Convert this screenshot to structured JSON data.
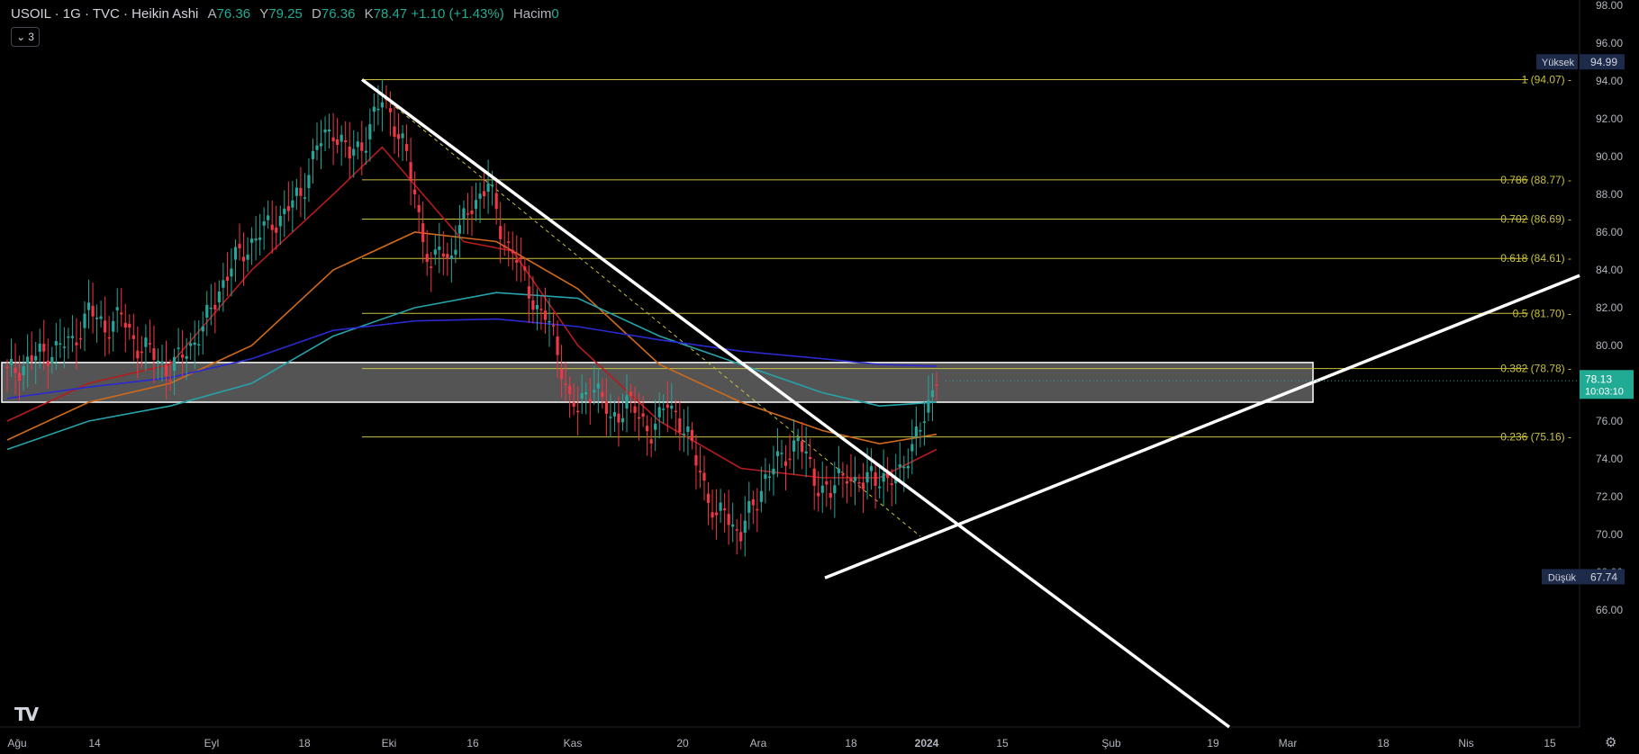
{
  "header": {
    "title": "USOIL · 1G · TVC · Heikin Ashi",
    "o_label": "A",
    "o_value": "76.36",
    "h_label": "Y",
    "h_value": "79.25",
    "l_label": "D",
    "l_value": "76.36",
    "c_label": "K",
    "c_value": "78.47",
    "change": "+1.10 (+1.43%)",
    "volume_label": "Hacim",
    "volume_value": "0"
  },
  "indicators_toggle": {
    "count": "3"
  },
  "price_axis_labels": [
    "98.00",
    "96.00",
    "94.00",
    "92.00",
    "90.00",
    "88.00",
    "86.00",
    "84.00",
    "82.00",
    "80.00",
    "78.00",
    "76.00",
    "74.00",
    "72.00",
    "70.00",
    "68.00",
    "66.00"
  ],
  "time_axis_labels": [
    "Ağu",
    "14",
    "Eyl",
    "18",
    "Eki",
    "16",
    "Kas",
    "20",
    "Ara",
    "18",
    "2024",
    "15",
    "Şub",
    "19",
    "Mar",
    "18",
    "Nis",
    "15"
  ],
  "high_marker": {
    "label": "Yüksek",
    "value": "94.99"
  },
  "low_marker": {
    "label": "Düşük",
    "value": "67.74"
  },
  "current_price": {
    "value": "78.13",
    "countdown": "10:03:10"
  },
  "fib_labels": [
    "1 (94.07)",
    "0.786 (88.77)",
    "0.702 (86.69)",
    "0.618 (84.61)",
    "0.5 (81.70)",
    "0.382 (78.78)",
    "0.236 (75.16)"
  ],
  "colors": {
    "background": "#000000",
    "up": "#26a69a",
    "down": "#f23645",
    "fib": "#c9c040",
    "ma_red": "#b71c1c",
    "ma_orange": "#d06a1a",
    "ma_teal": "#26a3a8",
    "ma_blue": "#2a2ad0",
    "trendline": "#ffffff"
  },
  "chart_data": {
    "type": "candlestick",
    "symbol": "USOIL",
    "interval": "1G",
    "style": "Heikin Ashi",
    "ylim": [
      65,
      98
    ],
    "x_range": [
      "2023-08",
      "2024-04"
    ],
    "ohlc_last": {
      "open": 76.36,
      "high": 79.25,
      "low": 76.36,
      "close": 78.47
    },
    "close_path": [
      [
        0,
        78.5
      ],
      [
        8,
        79.5
      ],
      [
        16,
        80.2
      ],
      [
        20,
        81.8
      ],
      [
        24,
        81.0
      ],
      [
        28,
        81.5
      ],
      [
        32,
        80.0
      ],
      [
        36,
        79.5
      ],
      [
        40,
        78.6
      ],
      [
        44,
        79.8
      ],
      [
        48,
        80.8
      ],
      [
        52,
        83.0
      ],
      [
        56,
        84.5
      ],
      [
        60,
        85.5
      ],
      [
        64,
        86.3
      ],
      [
        68,
        87.0
      ],
      [
        72,
        88.0
      ],
      [
        76,
        90.5
      ],
      [
        80,
        91.5
      ],
      [
        84,
        90.0
      ],
      [
        88,
        91.0
      ],
      [
        92,
        93.0
      ],
      [
        94,
        92.5
      ],
      [
        96,
        91.0
      ],
      [
        98,
        90.0
      ],
      [
        100,
        88.0
      ],
      [
        102,
        86.0
      ],
      [
        104,
        83.5
      ],
      [
        106,
        85.5
      ],
      [
        108,
        84.5
      ],
      [
        110,
        85.5
      ],
      [
        112,
        86.5
      ],
      [
        114,
        87.5
      ],
      [
        116,
        88.0
      ],
      [
        118,
        88.5
      ],
      [
        120,
        87.0
      ],
      [
        122,
        85.5
      ],
      [
        124,
        85.0
      ],
      [
        126,
        84.0
      ],
      [
        128,
        83.0
      ],
      [
        130,
        82.0
      ],
      [
        132,
        81.5
      ],
      [
        134,
        80.5
      ],
      [
        136,
        79.0
      ],
      [
        138,
        77.0
      ],
      [
        140,
        76.5
      ],
      [
        142,
        77.5
      ],
      [
        144,
        78.0
      ],
      [
        146,
        77.0
      ],
      [
        148,
        76.0
      ],
      [
        150,
        76.5
      ],
      [
        152,
        77.0
      ],
      [
        154,
        76.5
      ],
      [
        156,
        76.0
      ],
      [
        158,
        75.5
      ],
      [
        160,
        76.0
      ],
      [
        162,
        77.0
      ],
      [
        164,
        76.5
      ],
      [
        166,
        75.5
      ],
      [
        168,
        74.5
      ],
      [
        170,
        73.5
      ],
      [
        172,
        72.0
      ],
      [
        174,
        70.5
      ],
      [
        176,
        71.5
      ],
      [
        178,
        70.5
      ],
      [
        180,
        70.0
      ],
      [
        182,
        71.0
      ],
      [
        184,
        72.0
      ],
      [
        186,
        73.0
      ],
      [
        188,
        73.5
      ],
      [
        190,
        74.0
      ],
      [
        192,
        74.5
      ],
      [
        194,
        75.0
      ],
      [
        196,
        74.0
      ],
      [
        198,
        73.0
      ],
      [
        200,
        72.5
      ],
      [
        202,
        72.0
      ],
      [
        204,
        73.0
      ],
      [
        206,
        73.5
      ],
      [
        208,
        72.5
      ],
      [
        210,
        72.5
      ],
      [
        212,
        73.5
      ],
      [
        214,
        73.0
      ],
      [
        216,
        72.5
      ],
      [
        218,
        73.0
      ],
      [
        220,
        74.0
      ],
      [
        222,
        74.5
      ],
      [
        224,
        75.5
      ],
      [
        226,
        77.0
      ],
      [
        228,
        78.5
      ]
    ],
    "moving_averages": [
      {
        "color": "red",
        "values": [
          [
            0,
            76.0
          ],
          [
            20,
            78.0
          ],
          [
            40,
            79.0
          ],
          [
            60,
            84.0
          ],
          [
            80,
            88.0
          ],
          [
            92,
            90.5
          ],
          [
            100,
            88.5
          ],
          [
            112,
            85.5
          ],
          [
            124,
            85.0
          ],
          [
            140,
            80.0
          ],
          [
            160,
            76.0
          ],
          [
            180,
            73.5
          ],
          [
            200,
            73.0
          ],
          [
            214,
            73.0
          ],
          [
            228,
            74.5
          ]
        ]
      },
      {
        "color": "orange",
        "values": [
          [
            0,
            75.0
          ],
          [
            20,
            77.0
          ],
          [
            40,
            78.0
          ],
          [
            60,
            80.0
          ],
          [
            80,
            84.0
          ],
          [
            100,
            86.0
          ],
          [
            120,
            85.5
          ],
          [
            140,
            83.0
          ],
          [
            160,
            79.0
          ],
          [
            180,
            77.0
          ],
          [
            200,
            75.5
          ],
          [
            214,
            74.8
          ],
          [
            228,
            75.3
          ]
        ]
      },
      {
        "color": "teal",
        "values": [
          [
            0,
            74.5
          ],
          [
            20,
            76.0
          ],
          [
            40,
            76.8
          ],
          [
            60,
            78.0
          ],
          [
            80,
            80.5
          ],
          [
            100,
            82.0
          ],
          [
            120,
            82.8
          ],
          [
            140,
            82.5
          ],
          [
            160,
            80.5
          ],
          [
            180,
            79.0
          ],
          [
            200,
            77.5
          ],
          [
            214,
            76.8
          ],
          [
            228,
            77.0
          ]
        ]
      },
      {
        "color": "blue",
        "values": [
          [
            0,
            77.2
          ],
          [
            20,
            77.8
          ],
          [
            40,
            78.3
          ],
          [
            60,
            79.3
          ],
          [
            80,
            80.8
          ],
          [
            100,
            81.3
          ],
          [
            120,
            81.4
          ],
          [
            140,
            81.0
          ],
          [
            160,
            80.3
          ],
          [
            180,
            79.7
          ],
          [
            200,
            79.3
          ],
          [
            214,
            79.0
          ],
          [
            228,
            78.9
          ]
        ]
      }
    ],
    "fib_retracement": [
      {
        "level": 1,
        "price": 94.07
      },
      {
        "level": 0.786,
        "price": 88.77
      },
      {
        "level": 0.702,
        "price": 86.69
      },
      {
        "level": 0.618,
        "price": 84.61
      },
      {
        "level": 0.5,
        "price": 81.7
      },
      {
        "level": 0.382,
        "price": 78.78
      },
      {
        "level": 0.236,
        "price": 75.16
      }
    ],
    "zone": {
      "from": 77.0,
      "to": 79.1
    },
    "high": 94.99,
    "low": 67.74,
    "last_price": 78.13
  }
}
